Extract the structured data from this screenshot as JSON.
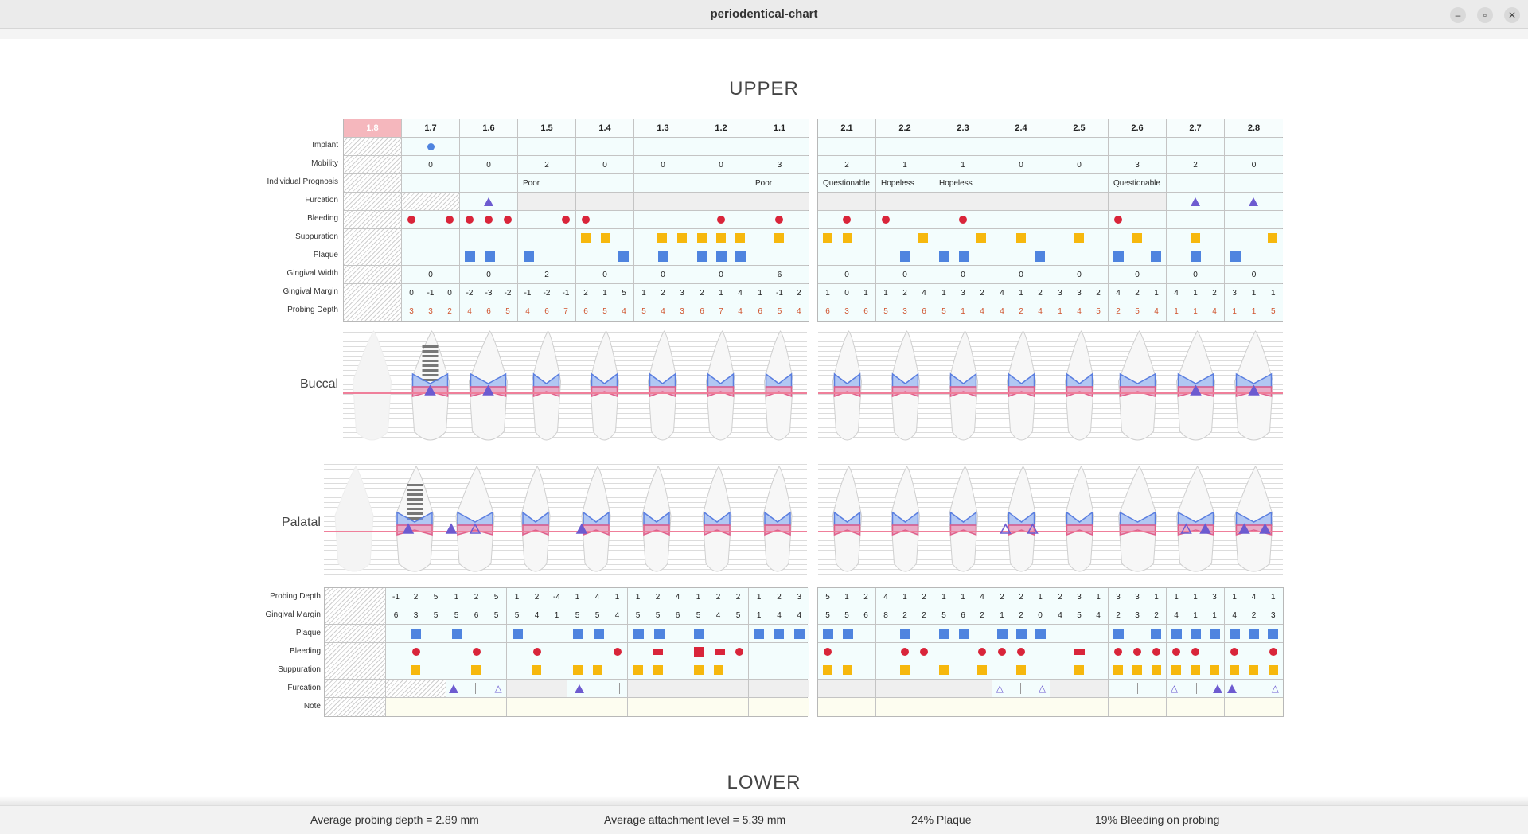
{
  "window": {
    "title": "periodentical-chart",
    "btn_min": "–",
    "btn_max": "▫",
    "btn_close": "✕"
  },
  "sections": {
    "upper": "UPPER",
    "lower": "LOWER"
  },
  "sides": {
    "buccal": "Buccal",
    "palatal": "Palatal"
  },
  "labels_top": [
    "Implant",
    "Mobility",
    "Individual Prognosis",
    "Furcation",
    "Bleeding",
    "Suppuration",
    "Plaque",
    "Gingival Width",
    "Gingival Margin",
    "Probing Depth"
  ],
  "labels_bottom": [
    "Probing Depth",
    "Gingival Margin",
    "Plaque",
    "Bleeding",
    "Suppuration",
    "Furcation",
    "Note"
  ],
  "teeth_right": [
    "1.8",
    "1.7",
    "1.6",
    "1.5",
    "1.4",
    "1.3",
    "1.2",
    "1.1"
  ],
  "teeth_left": [
    "2.1",
    "2.2",
    "2.3",
    "2.4",
    "2.5",
    "2.6",
    "2.7",
    "2.8"
  ],
  "missing_tooth": "1.8",
  "implant_tooth": "1.7",
  "mobility": {
    "right": [
      "",
      "0",
      "0",
      "2",
      "0",
      "0",
      "0",
      "3"
    ],
    "left": [
      "2",
      "1",
      "1",
      "0",
      "0",
      "3",
      "2",
      "0"
    ]
  },
  "prognosis": {
    "right": [
      "",
      "",
      "",
      "Poor",
      "",
      "",
      "",
      "Poor"
    ],
    "left": [
      "Questionable",
      "Hopeless",
      "Hopeless",
      "",
      "",
      "Questionable",
      "",
      ""
    ]
  },
  "gingival_width": {
    "right": [
      "",
      "0",
      "0",
      "2",
      "0",
      "0",
      "0",
      "6"
    ],
    "left": [
      "0",
      "0",
      "0",
      "0",
      "0",
      "0",
      "0",
      "0"
    ]
  },
  "gingival_margin_buccal": {
    "right": [
      [
        "",
        "",
        ""
      ],
      [
        "0",
        "-1",
        "0"
      ],
      [
        "-2",
        "-3",
        "-2"
      ],
      [
        "-1",
        "-2",
        "-1"
      ],
      [
        "2",
        "1",
        "5"
      ],
      [
        "1",
        "2",
        "3"
      ],
      [
        "2",
        "1",
        "4"
      ],
      [
        "1",
        "-1",
        "2"
      ]
    ],
    "left": [
      [
        "1",
        "0",
        "1"
      ],
      [
        "1",
        "2",
        "4"
      ],
      [
        "1",
        "3",
        "2"
      ],
      [
        "4",
        "1",
        "2"
      ],
      [
        "3",
        "3",
        "2"
      ],
      [
        "4",
        "2",
        "1"
      ],
      [
        "4",
        "1",
        "2"
      ],
      [
        "3",
        "1",
        "1"
      ]
    ]
  },
  "probing_depth_buccal": {
    "right": [
      [
        "",
        "",
        ""
      ],
      [
        "3",
        "3",
        "2"
      ],
      [
        "4",
        "6",
        "5"
      ],
      [
        "4",
        "6",
        "7"
      ],
      [
        "6",
        "5",
        "4"
      ],
      [
        "5",
        "4",
        "3"
      ],
      [
        "6",
        "7",
        "4"
      ],
      [
        "6",
        "5",
        "4"
      ]
    ],
    "left": [
      [
        "6",
        "3",
        "6"
      ],
      [
        "5",
        "3",
        "6"
      ],
      [
        "5",
        "1",
        "4"
      ],
      [
        "4",
        "2",
        "4"
      ],
      [
        "1",
        "4",
        "5"
      ],
      [
        "2",
        "5",
        "4"
      ],
      [
        "1",
        "1",
        "4"
      ],
      [
        "1",
        "1",
        "5"
      ]
    ]
  },
  "probing_depth_palatal": {
    "right": [
      [
        "",
        "",
        ""
      ],
      [
        "-1",
        "2",
        "5"
      ],
      [
        "1",
        "2",
        "5"
      ],
      [
        "1",
        "2",
        "-4"
      ],
      [
        "1",
        "4",
        "1"
      ],
      [
        "1",
        "2",
        "4"
      ],
      [
        "1",
        "2",
        "2"
      ],
      [
        "1",
        "2",
        "3"
      ]
    ],
    "left": [
      [
        "5",
        "1",
        "2"
      ],
      [
        "4",
        "1",
        "2"
      ],
      [
        "1",
        "1",
        "4"
      ],
      [
        "2",
        "2",
        "1"
      ],
      [
        "2",
        "3",
        "1"
      ],
      [
        "3",
        "3",
        "1"
      ],
      [
        "1",
        "1",
        "3"
      ],
      [
        "1",
        "4",
        "1"
      ]
    ]
  },
  "gingival_margin_palatal": {
    "right": [
      [
        "",
        "",
        ""
      ],
      [
        "6",
        "3",
        "5"
      ],
      [
        "5",
        "6",
        "5"
      ],
      [
        "5",
        "4",
        "1"
      ],
      [
        "5",
        "5",
        "4"
      ],
      [
        "5",
        "5",
        "6"
      ],
      [
        "5",
        "4",
        "5"
      ],
      [
        "1",
        "4",
        "4"
      ]
    ],
    "left": [
      [
        "5",
        "5",
        "6"
      ],
      [
        "8",
        "2",
        "2"
      ],
      [
        "5",
        "6",
        "2"
      ],
      [
        "1",
        "2",
        "0"
      ],
      [
        "4",
        "5",
        "4"
      ],
      [
        "2",
        "3",
        "2"
      ],
      [
        "4",
        "1",
        "1"
      ],
      [
        "4",
        "2",
        "3"
      ]
    ]
  },
  "stats": {
    "probing": "Average probing depth = 2.89 mm",
    "attachment": "Average attachment level = 5.39 mm",
    "plaque": "24% Plaque",
    "bleeding": "19% Bleeding on probing"
  },
  "colors": {
    "bleeding": "#d9253a",
    "suppuration": "#f6b80e",
    "plaque": "#4f84df",
    "furcation": "#6d5bd0",
    "missing": "#f5b7bd",
    "cell": "#f3fdfd"
  }
}
